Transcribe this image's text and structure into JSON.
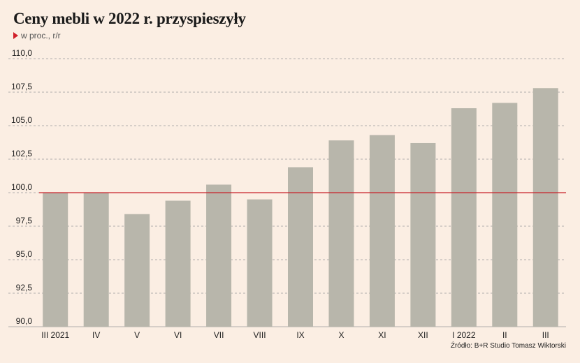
{
  "chart_data": {
    "type": "bar",
    "title": "Ceny mebli w 2022 r. przyspieszyły",
    "subtitle": "w proc., r/r",
    "source": "Źródło: B+R Studio Tomasz Wiktorski",
    "categories": [
      "III 2021",
      "IV",
      "V",
      "VI",
      "VII",
      "VIII",
      "IX",
      "X",
      "XI",
      "XII",
      "I 2022",
      "II",
      "III"
    ],
    "values": [
      100.0,
      100.0,
      98.4,
      99.4,
      100.6,
      99.5,
      101.9,
      103.9,
      104.3,
      103.7,
      106.3,
      106.7,
      107.8
    ],
    "ylim": [
      90,
      110
    ],
    "yticks": [
      "90,0",
      "92,5",
      "95,0",
      "97,5",
      "100,0",
      "102,5",
      "105,0",
      "107,5",
      "110,0"
    ],
    "ytick_values": [
      90,
      92.5,
      95,
      97.5,
      100,
      102.5,
      105,
      107.5,
      110
    ],
    "reference_line": 100,
    "bar_color": "#b8b6ab",
    "reference_color": "#c8222a",
    "grid_color": "#9a9a9a",
    "grid": true
  }
}
